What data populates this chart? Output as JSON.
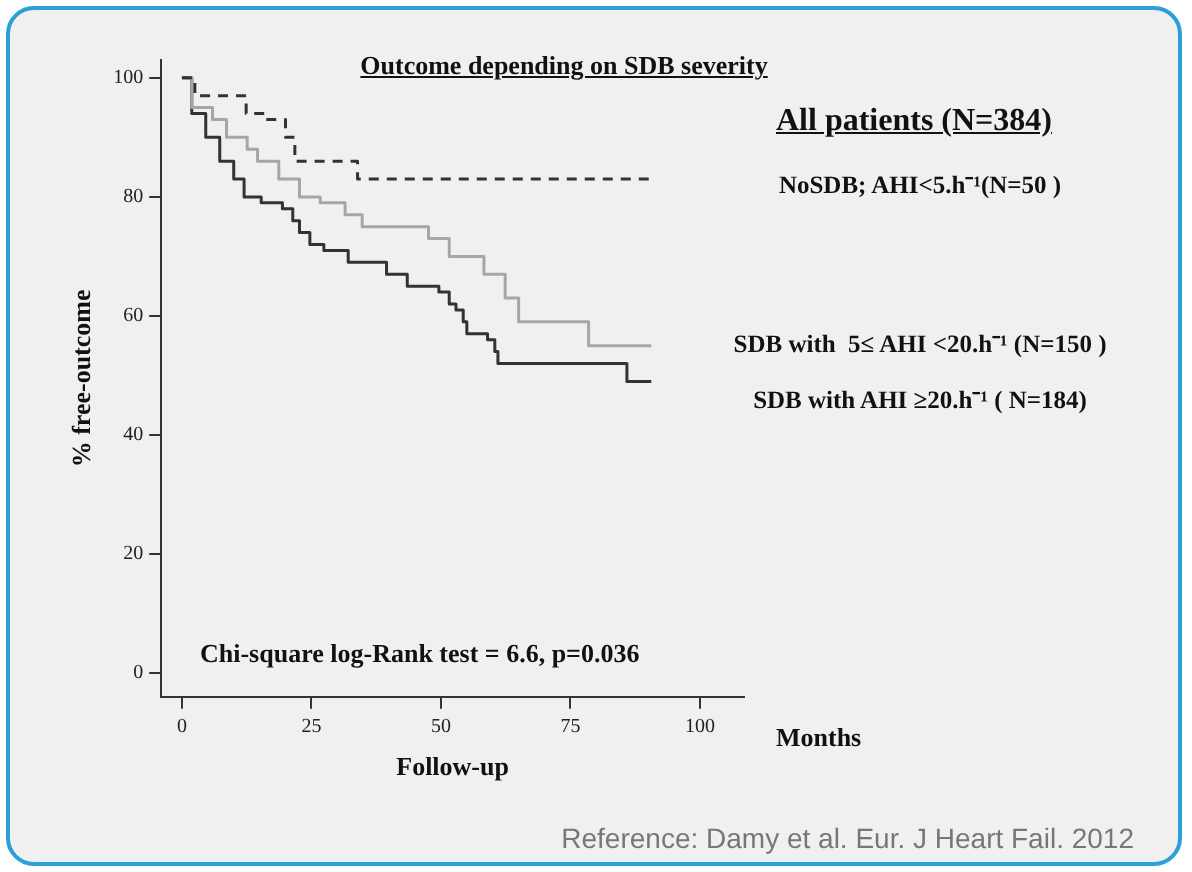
{
  "chart_data": {
    "type": "step",
    "title": "Outcome depending on SDB severity",
    "xlabel": "Follow-up",
    "ylabel": "% free-outcome",
    "annotations": [
      "All patients (N=384)",
      "Chi-square log-Rank test = 6.6, p=0.036",
      "Months",
      "Reference: Damy et al. Eur. J Heart Fail. 2012"
    ],
    "series": [
      {
        "name": "NoSDB; AHI<5.h⁻¹(N=50 )",
        "color": "#333333",
        "line_style": "dashed",
        "x": [
          0,
          2.5,
          12.4,
          16,
          20,
          21.8,
          33.9,
          90.6
        ],
        "values": [
          100,
          97,
          94,
          93,
          90,
          86,
          83,
          83
        ]
      },
      {
        "name": "SDB with  5≤ AHI <20.h⁻¹ (N=150 )",
        "color": "#a6a6a6",
        "line_style": "solid",
        "x": [
          0,
          1.9,
          5.9,
          8.6,
          12.6,
          14.6,
          18.7,
          22.7,
          26.7,
          31.5,
          34.8,
          47.6,
          51.6,
          58.3,
          62.4,
          65,
          78.5,
          90.6
        ],
        "values": [
          100,
          95,
          93,
          90,
          88,
          86,
          83,
          80,
          79,
          77,
          75,
          73,
          70,
          67,
          63,
          59,
          55,
          55
        ]
      },
      {
        "name": "SDB with AHI ≥20.h⁻¹ ( N=184)",
        "color": "#333333",
        "line_style": "solid",
        "x": [
          0,
          1.9,
          4.6,
          7.3,
          10,
          12,
          15.3,
          19.4,
          21.4,
          22.7,
          24.7,
          27.4,
          30.8,
          32.1,
          39.5,
          43.5,
          49.6,
          51.6,
          52.9,
          54.3,
          55,
          59,
          60.4,
          61,
          85.9,
          90.6
        ],
        "values": [
          100,
          94,
          90,
          86,
          83,
          80,
          79,
          78,
          76,
          74,
          72,
          71,
          71,
          69,
          67,
          65,
          64,
          62,
          61,
          59,
          57,
          56,
          54,
          52,
          49,
          49
        ]
      }
    ],
    "xlim": [
      -4,
      108.5
    ],
    "ylim": [
      -4,
      103
    ],
    "xticks": [
      0,
      25,
      50,
      75,
      100
    ],
    "yticks": [
      0,
      20,
      40,
      60,
      80,
      100
    ],
    "grid": false,
    "legend": false,
    "marker": "none"
  }
}
